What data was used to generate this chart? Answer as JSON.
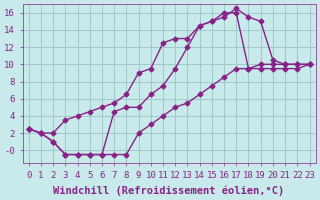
{
  "xlabel": "Windchill (Refroidissement éolien,°C)",
  "bg_color": "#c8eaea",
  "grid_color": "#a0c8c8",
  "line_color": "#882288",
  "marker": "D",
  "markersize": 2.5,
  "linewidth": 1.0,
  "xlim": [
    -0.5,
    23.5
  ],
  "ylim": [
    -1.5,
    17.0
  ],
  "xticks": [
    0,
    1,
    2,
    3,
    4,
    5,
    6,
    7,
    8,
    9,
    10,
    11,
    12,
    13,
    14,
    15,
    16,
    17,
    18,
    19,
    20,
    21,
    22,
    23
  ],
  "yticks": [
    0,
    2,
    4,
    6,
    8,
    10,
    12,
    14,
    16
  ],
  "ytick_labels": [
    "-0",
    "2",
    "4",
    "6",
    "8",
    "10",
    "12",
    "14",
    "16"
  ],
  "line1_x": [
    0,
    1,
    2,
    3,
    4,
    5,
    6,
    7,
    8,
    9,
    10,
    11,
    12,
    13,
    14,
    15,
    16,
    17,
    18,
    19,
    20,
    21,
    22,
    23
  ],
  "line1_y": [
    2.5,
    2.0,
    2.0,
    3.5,
    4.0,
    4.5,
    5.0,
    5.5,
    6.5,
    9.0,
    9.5,
    12.5,
    13.0,
    13.0,
    14.5,
    15.0,
    15.5,
    16.5,
    15.5,
    15.0,
    10.5,
    10.0,
    10.0,
    10.0
  ],
  "line2_x": [
    0,
    1,
    2,
    3,
    4,
    5,
    6,
    7,
    8,
    9,
    10,
    11,
    12,
    13,
    14,
    15,
    16,
    17,
    18,
    19,
    20,
    21,
    22,
    23
  ],
  "line2_y": [
    2.5,
    2.0,
    1.0,
    -0.5,
    -0.5,
    -0.5,
    -0.5,
    4.5,
    5.0,
    5.0,
    6.5,
    7.5,
    9.5,
    12.0,
    14.5,
    15.0,
    16.0,
    16.0,
    9.5,
    10.0,
    10.0,
    10.0,
    10.0,
    10.0
  ],
  "line3_x": [
    0,
    1,
    2,
    3,
    4,
    5,
    6,
    7,
    8,
    9,
    10,
    11,
    12,
    13,
    14,
    15,
    16,
    17,
    18,
    19,
    20,
    21,
    22,
    23
  ],
  "line3_y": [
    2.5,
    2.0,
    1.0,
    -0.5,
    -0.5,
    -0.5,
    -0.5,
    -0.5,
    -0.5,
    2.0,
    3.0,
    4.0,
    5.0,
    5.5,
    6.5,
    7.5,
    8.5,
    9.5,
    9.5,
    9.5,
    9.5,
    9.5,
    9.5,
    10.0
  ],
  "font_color": "#882288",
  "tick_fontsize": 6.5,
  "label_fontsize": 7.5
}
